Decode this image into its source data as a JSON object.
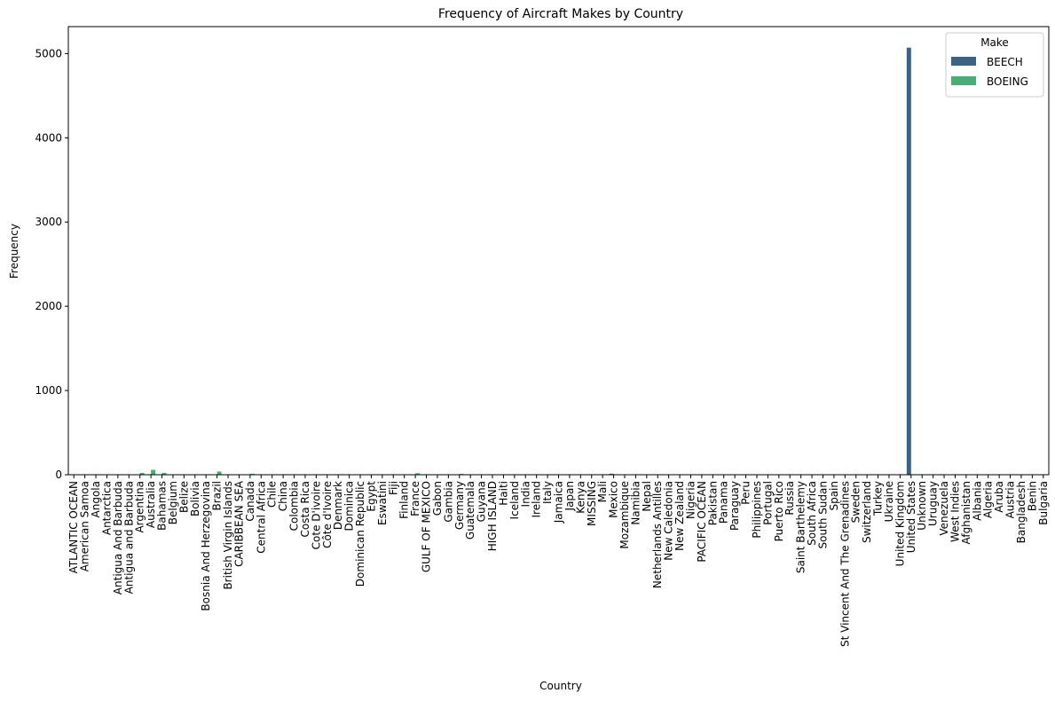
{
  "chart_data": {
    "type": "bar",
    "title": "Frequency of Aircraft Makes by Country",
    "xlabel": "Country",
    "ylabel": "Frequency",
    "ylim": [
      0,
      5320
    ],
    "yticks": [
      0,
      1000,
      2000,
      3000,
      4000,
      5000
    ],
    "legend": {
      "title": "Make",
      "placement": "top-right"
    },
    "categories": [
      "ATLANTIC OCEAN",
      "American Samoa",
      "Angola",
      "Antarctica",
      "Antigua And Barbuda",
      "Antigua and Barbuda",
      "Argentina",
      "Australia",
      "Bahamas",
      "Belgium",
      "Belize",
      "Bolivia",
      "Bosnia And Herzegovina",
      "Brazil",
      "British Virgin Islands",
      "CARIBBEAN SEA",
      "Canada",
      "Central Africa",
      "Chile",
      "China",
      "Colombia",
      "Costa Rica",
      "Cote D'ivoire",
      "Côte d'Ivoire",
      "Denmark",
      "Dominica",
      "Dominican Republic",
      "Egypt",
      "Eswatini",
      "Fiji",
      "Finland",
      "France",
      "GULF OF MEXICO",
      "Gabon",
      "Gambia",
      "Germany",
      "Guatemala",
      "Guyana",
      "HIGH ISLAND",
      "Haiti",
      "Iceland",
      "India",
      "Ireland",
      "Italy",
      "Jamaica",
      "Japan",
      "Kenya",
      "MISSING",
      "Mali",
      "Mexico",
      "Mozambique",
      "Namibia",
      "Nepal",
      "Netherlands Antilles",
      "New Caledonia",
      "New Zealand",
      "Nigeria",
      "PACIFIC OCEAN",
      "Pakistan",
      "Panama",
      "Paraguay",
      "Peru",
      "Philippines",
      "Portugal",
      "Puerto Rico",
      "Russia",
      "Saint Barthelemy",
      "South Africa",
      "South Sudan",
      "Spain",
      "St Vincent And The Grenadines",
      "Sweden",
      "Switzerland",
      "Turkey",
      "Ukraine",
      "United Kingdom",
      "United States",
      "Unknown",
      "Uruguay",
      "Venezuela",
      "West Indies",
      "Afghanistan",
      "Albania",
      "Algeria",
      "Aruba",
      "Austria",
      "Bangladesh",
      "Benin",
      "Bulgaria"
    ],
    "series": [
      {
        "name": "BEECH",
        "color": "#3b6383",
        "values": [
          1,
          1,
          1,
          1,
          1,
          1,
          3,
          2,
          4,
          1,
          2,
          2,
          1,
          3,
          1,
          1,
          4,
          2,
          1,
          1,
          2,
          2,
          1,
          1,
          1,
          1,
          3,
          1,
          1,
          1,
          1,
          3,
          2,
          1,
          1,
          2,
          4,
          1,
          1,
          2,
          1,
          1,
          1,
          1,
          1,
          1,
          2,
          1,
          1,
          12,
          1,
          1,
          1,
          1,
          1,
          1,
          2,
          1,
          1,
          2,
          2,
          2,
          1,
          1,
          2,
          1,
          1,
          4,
          1,
          1,
          1,
          1,
          1,
          1,
          1,
          3,
          5070,
          2,
          1,
          6,
          1,
          0,
          0,
          0,
          0,
          0,
          0,
          0,
          0
        ]
      },
      {
        "name": "BOEING",
        "color": "#4aae74",
        "values": [
          1,
          1,
          1,
          1,
          3,
          1,
          22,
          58,
          22,
          3,
          3,
          1,
          1,
          38,
          2,
          1,
          12,
          1,
          2,
          6,
          2,
          2,
          1,
          1,
          1,
          1,
          3,
          2,
          1,
          1,
          2,
          18,
          1,
          1,
          1,
          10,
          1,
          1,
          1,
          4,
          3,
          2,
          3,
          3,
          1,
          3,
          2,
          1,
          1,
          4,
          1,
          1,
          1,
          1,
          1,
          1,
          2,
          1,
          1,
          1,
          1,
          2,
          2,
          1,
          2,
          1,
          1,
          3,
          1,
          3,
          1,
          1,
          1,
          2,
          3,
          4,
          1,
          1,
          1,
          2,
          1,
          2,
          1,
          1,
          1,
          1,
          1,
          1,
          1
        ]
      }
    ]
  }
}
